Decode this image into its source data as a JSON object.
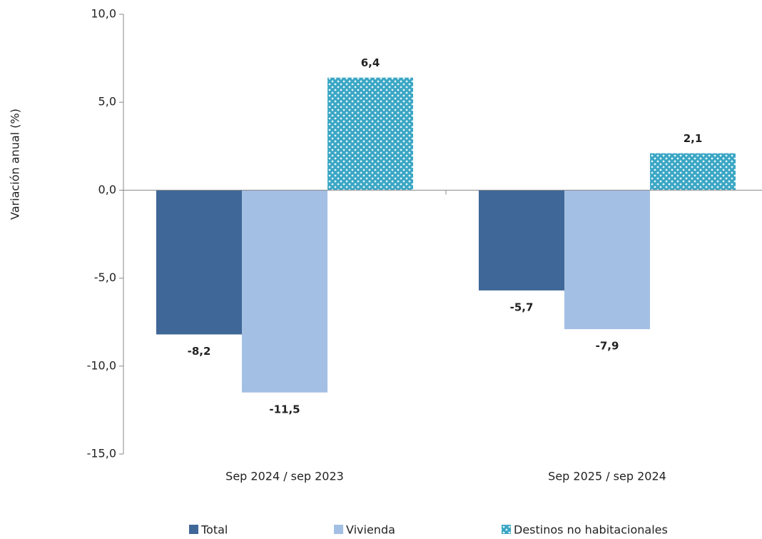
{
  "chart_data": {
    "type": "bar",
    "y_label": "Variación anual (%)",
    "categories": [
      "Sep 2024 / sep 2023",
      "Sep 2025 / sep 2024"
    ],
    "series": [
      {
        "name": "Total",
        "color": "#3f6797",
        "label_color": "#1f3a5a",
        "values": [
          -8.2,
          -5.7
        ],
        "value_labels": [
          "-8,2",
          "-5,7"
        ]
      },
      {
        "name": "Vivienda",
        "color": "#a3bfe3",
        "label_color": "#5b8fd0",
        "values": [
          -11.5,
          -7.9
        ],
        "value_labels": [
          "-11,5",
          "-7,9"
        ]
      },
      {
        "name": "Destinos no habitacionales",
        "color": "#3aa6c4",
        "pattern": "dots",
        "label_color": "#1f5a70",
        "values": [
          6.4,
          2.1
        ],
        "value_labels": [
          "6,4",
          "2,1"
        ]
      }
    ],
    "ylim": [
      -15,
      10
    ],
    "yticks": [
      {
        "value": -15,
        "label": "-15,0"
      },
      {
        "value": -10,
        "label": "-10,0"
      },
      {
        "value": -5,
        "label": "-5,0"
      },
      {
        "value": 0,
        "label": "0,0"
      },
      {
        "value": 5,
        "label": "5,0"
      },
      {
        "value": 10,
        "label": "10,0"
      }
    ],
    "legend": "bottom"
  }
}
